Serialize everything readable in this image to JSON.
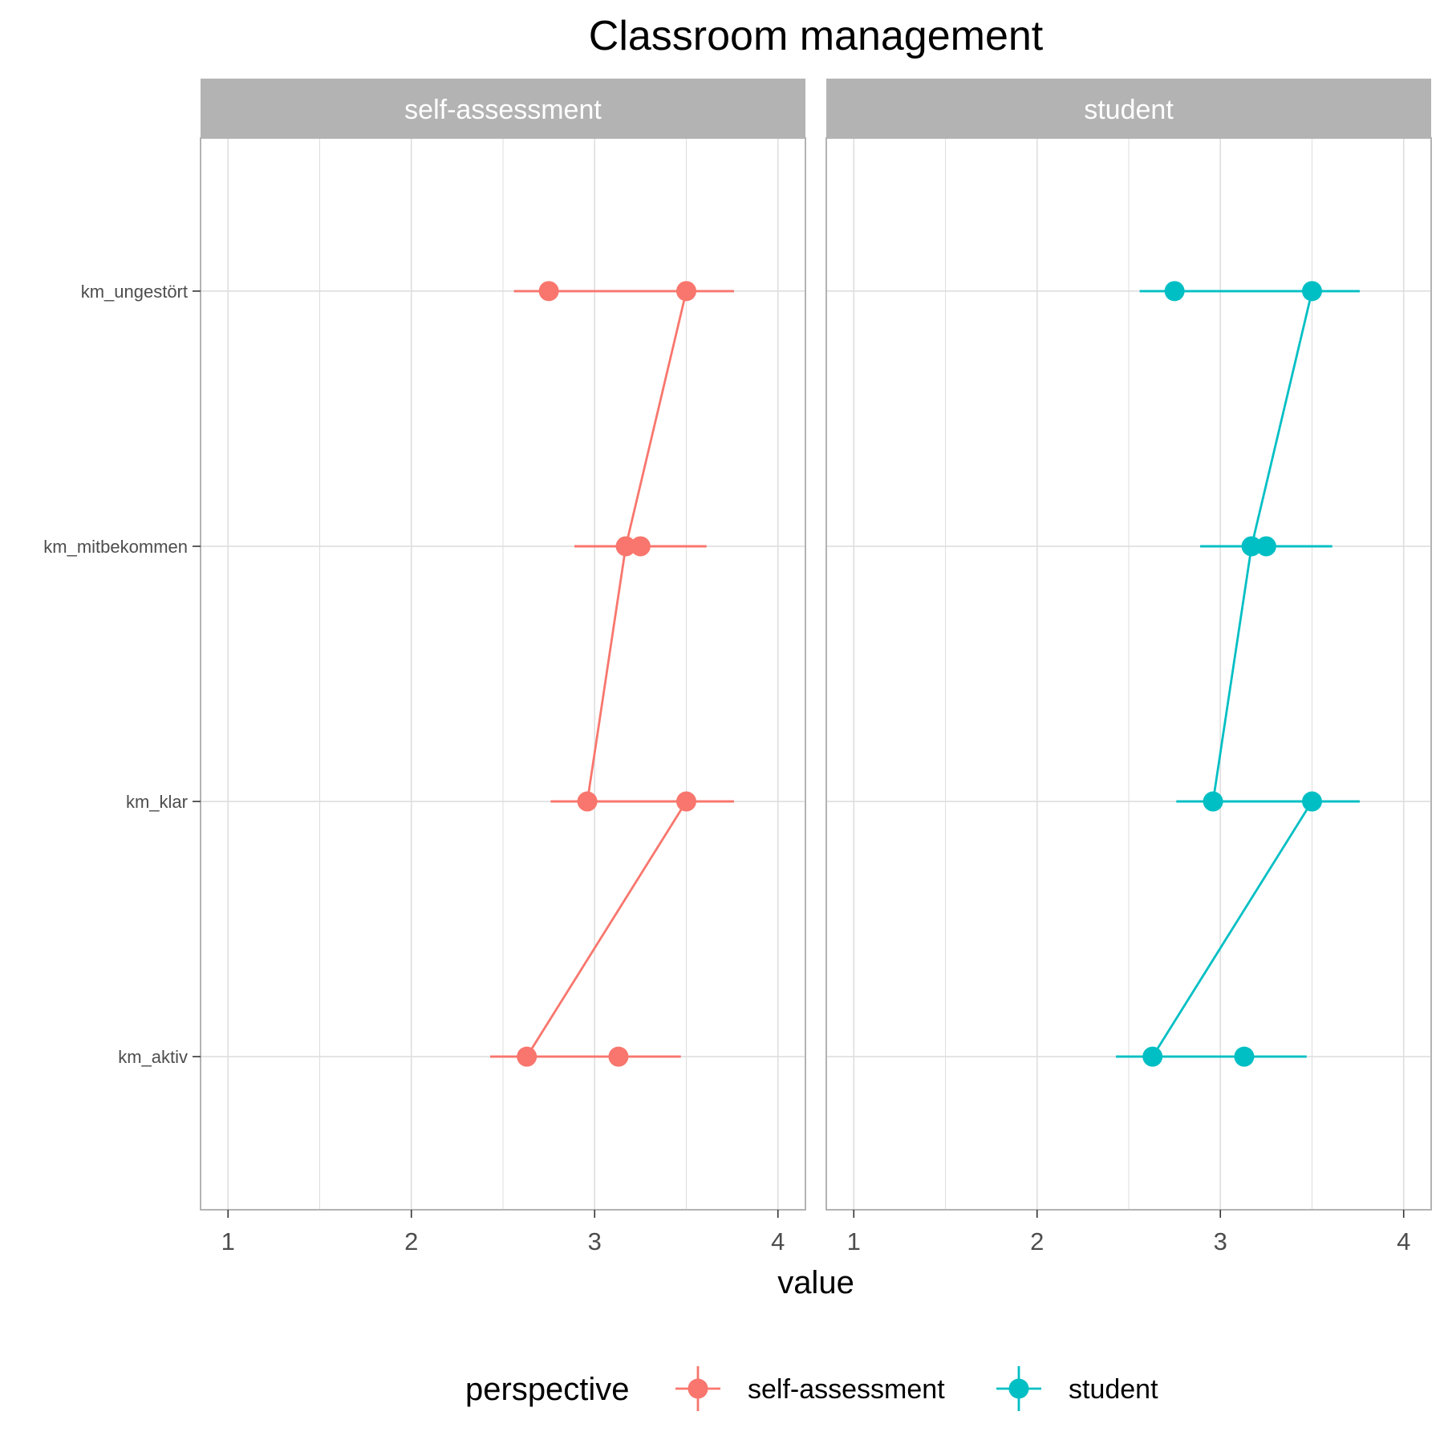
{
  "chart_data": {
    "type": "line",
    "title": "Classroom management",
    "xlabel": "value",
    "ylabel": "",
    "xlim": [
      0.85,
      4.15
    ],
    "x_ticks": [
      "1",
      "2",
      "3",
      "4"
    ],
    "x_tick_values": [
      1,
      2,
      3,
      4
    ],
    "categories": [
      "km_ungestört",
      "km_mitbekommen",
      "km_klar",
      "km_aktiv"
    ],
    "facets": [
      "self-assessment",
      "student"
    ],
    "grid": true,
    "legend": {
      "title": "perspective",
      "position": "bottom",
      "entries": [
        "self-assessment",
        "student"
      ]
    },
    "colors": {
      "self-assessment": "#F8766D",
      "student": "#00BFC4",
      "strip": "#B3B3B3",
      "grid": "#DEDEDE",
      "border": "#B3B3B3"
    },
    "series": [
      {
        "name": "self-assessment",
        "facet": "self-assessment",
        "points": [
          {
            "category": "km_ungestört",
            "x": 2.75,
            "lower": 2.56,
            "upper": 3.76,
            "connected": false
          },
          {
            "category": "km_ungestört",
            "x": 3.5,
            "lower": 2.56,
            "upper": 3.76,
            "connected": true
          },
          {
            "category": "km_mitbekommen",
            "x": 3.17,
            "lower": 2.89,
            "upper": 3.61,
            "connected": true
          },
          {
            "category": "km_mitbekommen",
            "x": 3.25,
            "lower": 2.89,
            "upper": 3.61,
            "connected": false
          },
          {
            "category": "km_klar",
            "x": 2.96,
            "lower": 2.76,
            "upper": 3.76,
            "connected": true
          },
          {
            "category": "km_klar",
            "x": 3.5,
            "lower": 2.76,
            "upper": 3.76,
            "connected": true
          },
          {
            "category": "km_aktiv",
            "x": 2.63,
            "lower": 2.43,
            "upper": 3.47,
            "connected": true
          },
          {
            "category": "km_aktiv",
            "x": 3.13,
            "lower": 2.43,
            "upper": 3.47,
            "connected": false
          }
        ]
      },
      {
        "name": "student",
        "facet": "student",
        "points": [
          {
            "category": "km_ungestört",
            "x": 2.75,
            "lower": 2.56,
            "upper": 3.76,
            "connected": false
          },
          {
            "category": "km_ungestört",
            "x": 3.5,
            "lower": 2.56,
            "upper": 3.76,
            "connected": true
          },
          {
            "category": "km_mitbekommen",
            "x": 3.17,
            "lower": 2.89,
            "upper": 3.61,
            "connected": true
          },
          {
            "category": "km_mitbekommen",
            "x": 3.25,
            "lower": 2.89,
            "upper": 3.61,
            "connected": false
          },
          {
            "category": "km_klar",
            "x": 2.96,
            "lower": 2.76,
            "upper": 3.76,
            "connected": true
          },
          {
            "category": "km_klar",
            "x": 3.5,
            "lower": 2.76,
            "upper": 3.76,
            "connected": true
          },
          {
            "category": "km_aktiv",
            "x": 2.63,
            "lower": 2.43,
            "upper": 3.47,
            "connected": true
          },
          {
            "category": "km_aktiv",
            "x": 3.13,
            "lower": 2.43,
            "upper": 3.47,
            "connected": false
          }
        ]
      }
    ]
  }
}
